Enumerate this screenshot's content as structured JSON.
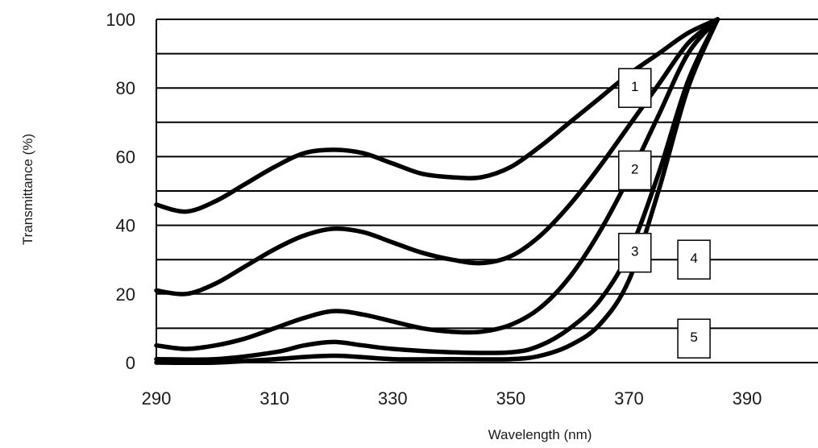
{
  "chart_data": {
    "type": "line",
    "title": "",
    "xlabel": "Wavelength (nm)",
    "ylabel": "Transmittance (%)",
    "xlim": [
      290,
      402
    ],
    "ylim": [
      0,
      100
    ],
    "x_ticks": [
      290,
      310,
      330,
      350,
      370,
      390
    ],
    "y_ticks": [
      0,
      20,
      40,
      60,
      80,
      100
    ],
    "grid_y_step": 10,
    "grid": true,
    "line_color": "#000000",
    "series": [
      {
        "name": "1",
        "x": [
          290,
          295,
          300,
          305,
          310,
          315,
          320,
          325,
          330,
          335,
          340,
          345,
          350,
          355,
          360,
          365,
          370,
          375,
          380,
          385
        ],
        "y": [
          46,
          44,
          47,
          52,
          57,
          61,
          62,
          61,
          58,
          55,
          54,
          54,
          57,
          63,
          70,
          77,
          84,
          90,
          96,
          100
        ]
      },
      {
        "name": "2",
        "x": [
          290,
          295,
          300,
          305,
          310,
          315,
          320,
          325,
          330,
          335,
          340,
          345,
          350,
          355,
          360,
          365,
          370,
          375,
          380,
          385
        ],
        "y": [
          21,
          20,
          23,
          28,
          33,
          37,
          39,
          38,
          35,
          32,
          30,
          29,
          31,
          37,
          46,
          57,
          69,
          81,
          93,
          100
        ]
      },
      {
        "name": "3",
        "x": [
          290,
          295,
          300,
          305,
          310,
          315,
          320,
          325,
          330,
          335,
          340,
          345,
          350,
          355,
          360,
          365,
          370,
          375,
          380,
          385
        ],
        "y": [
          5,
          4,
          5,
          7,
          10,
          13,
          15,
          14,
          12,
          10,
          9,
          9,
          11,
          16,
          25,
          38,
          54,
          72,
          90,
          100
        ]
      },
      {
        "name": "4",
        "x": [
          290,
          300,
          310,
          315,
          320,
          325,
          330,
          340,
          350,
          355,
          360,
          365,
          370,
          375,
          380,
          385
        ],
        "y": [
          1,
          1,
          3,
          5,
          6,
          5,
          4,
          3,
          3,
          5,
          10,
          18,
          32,
          55,
          82,
          100
        ]
      },
      {
        "name": "5",
        "x": [
          290,
          300,
          310,
          320,
          330,
          340,
          350,
          355,
          360,
          365,
          370,
          375,
          380,
          385
        ],
        "y": [
          0,
          0,
          1,
          2,
          1,
          1,
          1,
          2,
          5,
          11,
          24,
          50,
          80,
          100
        ]
      }
    ],
    "series_labels": [
      {
        "text": "1",
        "x": 371,
        "y": 80
      },
      {
        "text": "2",
        "x": 371,
        "y": 56
      },
      {
        "text": "3",
        "x": 371,
        "y": 32
      },
      {
        "text": "4",
        "x": 381,
        "y": 30
      },
      {
        "text": "5",
        "x": 381,
        "y": 7
      }
    ]
  }
}
